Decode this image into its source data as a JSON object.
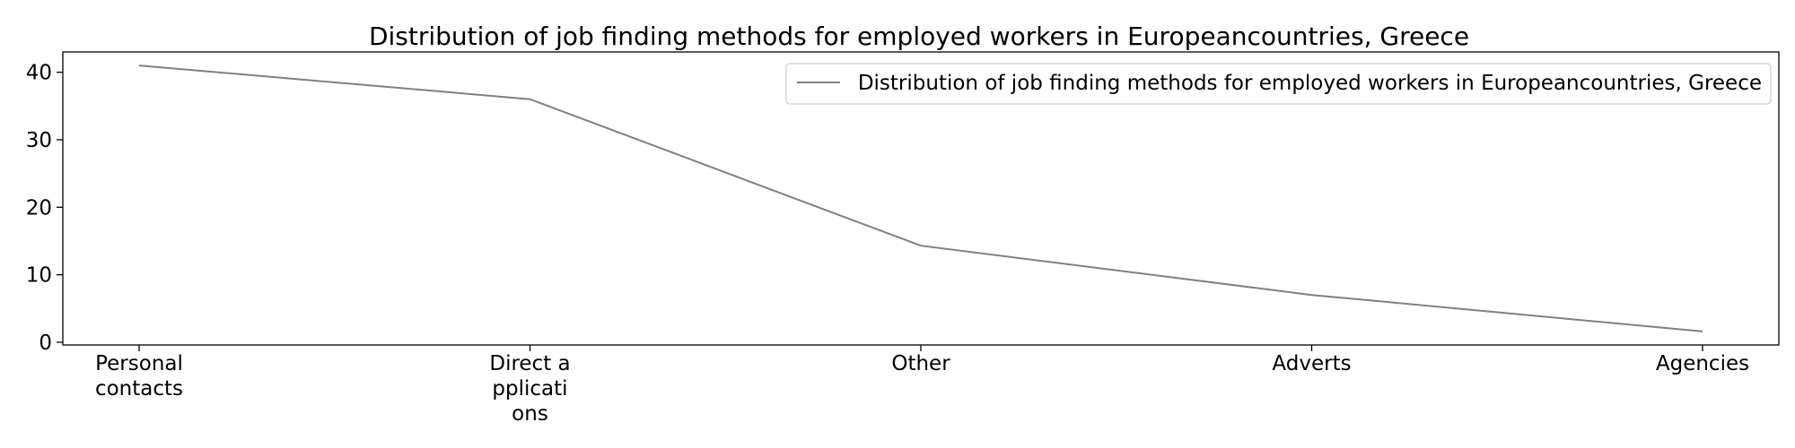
{
  "chart_data": {
    "type": "line",
    "title": "Distribution of job finding methods for employed workers in Europeancountries, Greece",
    "xlabel": "",
    "ylabel": "",
    "categories": [
      "Personal\ncontacts",
      "Direct a\npplicati\nons",
      "Other",
      "Adverts",
      "Agencies"
    ],
    "series": [
      {
        "name": "Distribution of job finding methods for employed workers in Europeancountries, Greece",
        "values": [
          41.0,
          36.0,
          14.3,
          7.0,
          1.6
        ],
        "color": "#808080"
      }
    ],
    "ylim": [
      -0.4,
      43.0
    ],
    "yticks": [
      0,
      10,
      20,
      30,
      40
    ],
    "grid": false,
    "legend_position": "top-right"
  }
}
